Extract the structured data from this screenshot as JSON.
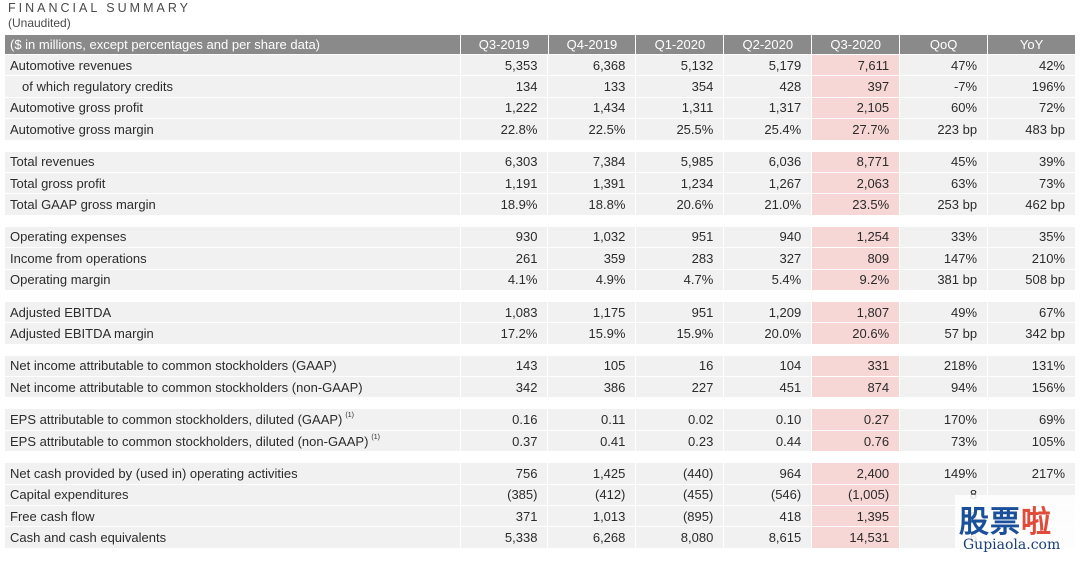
{
  "title": "FINANCIAL SUMMARY",
  "subtitle": "(Unaudited)",
  "header": {
    "label": "($ in millions, except percentages and per share data)",
    "cols": [
      "Q3-2019",
      "Q4-2019",
      "Q1-2020",
      "Q2-2020",
      "Q3-2020",
      "QoQ",
      "YoY"
    ]
  },
  "groups": [
    {
      "rows": [
        {
          "label": "Automotive revenues",
          "values": [
            "5,353",
            "6,368",
            "5,132",
            "5,179",
            "7,611",
            "47%",
            "42%"
          ]
        },
        {
          "label": "of which regulatory credits",
          "indent": true,
          "values": [
            "134",
            "133",
            "354",
            "428",
            "397",
            "-7%",
            "196%"
          ]
        },
        {
          "label": "Automotive gross profit",
          "values": [
            "1,222",
            "1,434",
            "1,311",
            "1,317",
            "2,105",
            "60%",
            "72%"
          ]
        },
        {
          "label": "Automotive gross margin",
          "values": [
            "22.8%",
            "22.5%",
            "25.5%",
            "25.4%",
            "27.7%",
            "223 bp",
            "483 bp"
          ]
        }
      ]
    },
    {
      "rows": [
        {
          "label": "Total revenues",
          "values": [
            "6,303",
            "7,384",
            "5,985",
            "6,036",
            "8,771",
            "45%",
            "39%"
          ]
        },
        {
          "label": "Total gross profit",
          "values": [
            "1,191",
            "1,391",
            "1,234",
            "1,267",
            "2,063",
            "63%",
            "73%"
          ]
        },
        {
          "label": "Total GAAP gross margin",
          "values": [
            "18.9%",
            "18.8%",
            "20.6%",
            "21.0%",
            "23.5%",
            "253 bp",
            "462 bp"
          ]
        }
      ]
    },
    {
      "rows": [
        {
          "label": "Operating expenses",
          "values": [
            "930",
            "1,032",
            "951",
            "940",
            "1,254",
            "33%",
            "35%"
          ]
        },
        {
          "label": "Income from operations",
          "values": [
            "261",
            "359",
            "283",
            "327",
            "809",
            "147%",
            "210%"
          ]
        },
        {
          "label": "Operating margin",
          "values": [
            "4.1%",
            "4.9%",
            "4.7%",
            "5.4%",
            "9.2%",
            "381 bp",
            "508 bp"
          ]
        }
      ]
    },
    {
      "rows": [
        {
          "label": "Adjusted EBITDA",
          "values": [
            "1,083",
            "1,175",
            "951",
            "1,209",
            "1,807",
            "49%",
            "67%"
          ]
        },
        {
          "label": "Adjusted EBITDA margin",
          "values": [
            "17.2%",
            "15.9%",
            "15.9%",
            "20.0%",
            "20.6%",
            "57 bp",
            "342 bp"
          ]
        }
      ]
    },
    {
      "rows": [
        {
          "label": "Net income attributable to common stockholders (GAAP)",
          "values": [
            "143",
            "105",
            "16",
            "104",
            "331",
            "218%",
            "131%"
          ]
        },
        {
          "label": "Net income attributable to common stockholders (non-GAAP)",
          "values": [
            "342",
            "386",
            "227",
            "451",
            "874",
            "94%",
            "156%"
          ]
        }
      ]
    },
    {
      "rows": [
        {
          "label": "EPS attributable to common stockholders, diluted (GAAP)",
          "sup": "(1)",
          "values": [
            "0.16",
            "0.11",
            "0.02",
            "0.10",
            "0.27",
            "170%",
            "69%"
          ]
        },
        {
          "label": "EPS attributable to common stockholders, diluted (non-GAAP)",
          "sup": "(1)",
          "values": [
            "0.37",
            "0.41",
            "0.23",
            "0.44",
            "0.76",
            "73%",
            "105%"
          ]
        }
      ]
    },
    {
      "rows": [
        {
          "label": "Net cash provided by (used in) operating activities",
          "values": [
            "756",
            "1,425",
            "(440)",
            "964",
            "2,400",
            "149%",
            "217%"
          ]
        },
        {
          "label": "Capital expenditures",
          "values": [
            "(385)",
            "(412)",
            "(455)",
            "(546)",
            "(1,005)",
            "8",
            ""
          ]
        },
        {
          "label": "Free cash flow",
          "values": [
            "371",
            "1,013",
            "(895)",
            "418",
            "1,395",
            "23",
            ""
          ]
        },
        {
          "label": "Cash and cash equivalents",
          "values": [
            "5,338",
            "6,268",
            "8,080",
            "8,615",
            "14,531",
            "6",
            ""
          ]
        }
      ]
    }
  ],
  "watermark": {
    "logo_a": "股票",
    "logo_b": "啦",
    "url": "Gupiaola.com"
  }
}
